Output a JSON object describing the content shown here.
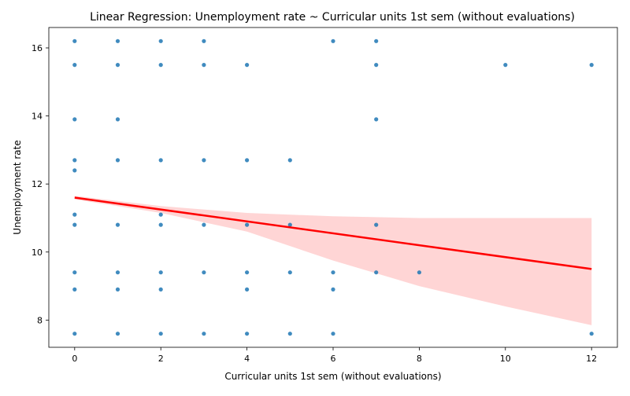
{
  "chart_data": {
    "type": "scatter",
    "title": "Linear Regression: Unemployment rate ~ Curricular units 1st sem (without evaluations)",
    "xlabel": "Curricular units 1st sem (without evaluations)",
    "ylabel": "Unemployment rate",
    "xlim": [
      -0.6,
      12.6
    ],
    "ylim": [
      7.2,
      16.6
    ],
    "xticks": [
      0,
      2,
      4,
      6,
      8,
      10,
      12
    ],
    "yticks": [
      8,
      10,
      12,
      14,
      16
    ],
    "grid": false,
    "legend": "none",
    "colors": {
      "points": "#1f77b4",
      "regression_line": "#ff0000",
      "confidence_band": "#ffb3b3"
    },
    "points": [
      {
        "x": 0,
        "y": 16.2
      },
      {
        "x": 1,
        "y": 16.2
      },
      {
        "x": 2,
        "y": 16.2
      },
      {
        "x": 3,
        "y": 16.2
      },
      {
        "x": 6,
        "y": 16.2
      },
      {
        "x": 7,
        "y": 16.2
      },
      {
        "x": 0,
        "y": 15.5
      },
      {
        "x": 1,
        "y": 15.5
      },
      {
        "x": 2,
        "y": 15.5
      },
      {
        "x": 3,
        "y": 15.5
      },
      {
        "x": 4,
        "y": 15.5
      },
      {
        "x": 7,
        "y": 15.5
      },
      {
        "x": 10,
        "y": 15.5
      },
      {
        "x": 12,
        "y": 15.5
      },
      {
        "x": 0,
        "y": 13.9
      },
      {
        "x": 1,
        "y": 13.9
      },
      {
        "x": 7,
        "y": 13.9
      },
      {
        "x": 0,
        "y": 12.7
      },
      {
        "x": 1,
        "y": 12.7
      },
      {
        "x": 2,
        "y": 12.7
      },
      {
        "x": 3,
        "y": 12.7
      },
      {
        "x": 4,
        "y": 12.7
      },
      {
        "x": 5,
        "y": 12.7
      },
      {
        "x": 0,
        "y": 12.4
      },
      {
        "x": 0,
        "y": 11.1
      },
      {
        "x": 2,
        "y": 11.1
      },
      {
        "x": 0,
        "y": 10.8
      },
      {
        "x": 1,
        "y": 10.8
      },
      {
        "x": 2,
        "y": 10.8
      },
      {
        "x": 3,
        "y": 10.8
      },
      {
        "x": 4,
        "y": 10.8
      },
      {
        "x": 5,
        "y": 10.8
      },
      {
        "x": 7,
        "y": 10.8
      },
      {
        "x": 0,
        "y": 9.4
      },
      {
        "x": 1,
        "y": 9.4
      },
      {
        "x": 2,
        "y": 9.4
      },
      {
        "x": 3,
        "y": 9.4
      },
      {
        "x": 4,
        "y": 9.4
      },
      {
        "x": 5,
        "y": 9.4
      },
      {
        "x": 6,
        "y": 9.4
      },
      {
        "x": 7,
        "y": 9.4
      },
      {
        "x": 8,
        "y": 9.4
      },
      {
        "x": 0,
        "y": 8.9
      },
      {
        "x": 1,
        "y": 8.9
      },
      {
        "x": 2,
        "y": 8.9
      },
      {
        "x": 4,
        "y": 8.9
      },
      {
        "x": 6,
        "y": 8.9
      },
      {
        "x": 0,
        "y": 7.6
      },
      {
        "x": 1,
        "y": 7.6
      },
      {
        "x": 2,
        "y": 7.6
      },
      {
        "x": 3,
        "y": 7.6
      },
      {
        "x": 4,
        "y": 7.6
      },
      {
        "x": 5,
        "y": 7.6
      },
      {
        "x": 6,
        "y": 7.6
      },
      {
        "x": 12,
        "y": 7.6
      }
    ],
    "regression": {
      "x": [
        0,
        12
      ],
      "y": [
        11.6,
        9.5
      ]
    },
    "confidence_band": {
      "x": [
        0,
        2,
        4,
        6,
        8,
        10,
        12
      ],
      "lower": [
        11.55,
        11.15,
        10.6,
        9.75,
        9.0,
        8.4,
        7.85
      ],
      "upper": [
        11.65,
        11.35,
        11.15,
        11.05,
        11.0,
        11.0,
        11.0
      ]
    }
  }
}
